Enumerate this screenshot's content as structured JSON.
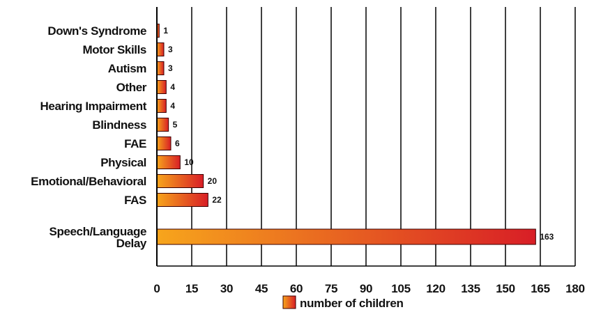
{
  "chart_data": {
    "type": "bar",
    "orientation": "horizontal",
    "categories": [
      "Down's Syndrome",
      "Motor Skills",
      "Autism",
      "Other",
      "Hearing Impairment",
      "Blindness",
      "FAE",
      "Physical",
      "Emotional/Behavioral",
      "FAS",
      "Speech/Language Delay"
    ],
    "category_lines": [
      [
        "Down's Syndrome"
      ],
      [
        "Motor Skills"
      ],
      [
        "Autism"
      ],
      [
        "Other"
      ],
      [
        "Hearing Impairment"
      ],
      [
        "Blindness"
      ],
      [
        "FAE"
      ],
      [
        "Physical"
      ],
      [
        "Emotional/Behavioral"
      ],
      [
        "FAS"
      ],
      [
        "Speech/Language",
        "Delay"
      ]
    ],
    "series": [
      {
        "name": "number of children",
        "values": [
          1,
          3,
          3,
          4,
          4,
          5,
          6,
          10,
          20,
          22,
          163
        ]
      }
    ],
    "data_labels": [
      "1",
      "3",
      "3",
      "4",
      "4",
      "5",
      "6",
      "10",
      "20",
      "22",
      "163"
    ],
    "xlim": [
      0,
      180
    ],
    "xticks": [
      0,
      15,
      30,
      45,
      60,
      75,
      90,
      105,
      120,
      135,
      150,
      165,
      180
    ],
    "tick_labels": [
      "0",
      "15",
      "30",
      "45",
      "60",
      "75",
      "90",
      "105",
      "120",
      "135",
      "150",
      "165",
      "180"
    ],
    "title": "",
    "xlabel": "",
    "ylabel": "",
    "grid": "vertical",
    "legend": {
      "position": "bottom-center",
      "label": "number of children"
    },
    "colors": {
      "bar_start": "#f7a51c",
      "bar_end": "#d81e26",
      "bar_stroke": "#3a0000",
      "grid": "#000000",
      "axis": "#000000"
    }
  }
}
